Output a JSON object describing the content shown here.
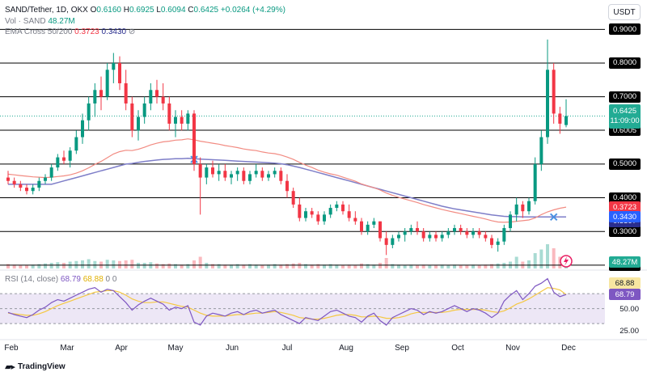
{
  "header": {
    "symbol": "SAND/Tether, 1D, OKX",
    "ohlc": [
      {
        "k": "O",
        "v": "0.6160"
      },
      {
        "k": "H",
        "v": "0.6925"
      },
      {
        "k": "L",
        "v": "0.6094"
      },
      {
        "k": "C",
        "v": "0.6425"
      }
    ],
    "change": "+0.0264 (+4.29%)",
    "vol_label": "Vol · SAND",
    "vol_value": "48.27M",
    "ema_label": "EMA Cross 50/200",
    "ema50_value": "0.3723",
    "ema200_value": "0.3430",
    "settings_glyph": "⊘",
    "currency": "USDT"
  },
  "colors": {
    "up": "#089981",
    "down": "#f23645",
    "ema50": "#f28b82",
    "ema200": "#7e7ec8",
    "level_line": "#000000",
    "rsi_line": "#7e57c2",
    "rsi_ma": "#f5c842",
    "rsi_band": "#ede7f6"
  },
  "price_axis": {
    "levels": [
      "0.9000",
      "0.8000",
      "0.7000",
      "0.6005",
      "0.5000",
      "0.4000",
      "0.3000",
      "0.2000"
    ],
    "current_price": "0.6425",
    "countdown": "11:09:00",
    "ema50_tag": "0.3723",
    "ema200_tag": "0.3430",
    "extra_tag": "0.3397",
    "volume_tag": "48.27M"
  },
  "rsi": {
    "label": "RSI (14, close)",
    "value": "68.79",
    "ma_value": "68.88",
    "extra": "0 0",
    "axis": [
      "50.00",
      "25.00"
    ],
    "tag_a": "68.88",
    "tag_b": "68.79"
  },
  "x_axis": [
    "Feb",
    "Mar",
    "Apr",
    "May",
    "Jun",
    "Jul",
    "Aug",
    "Sep",
    "Oct",
    "Nov",
    "Dec"
  ],
  "branding": {
    "logo_text": "TradingView",
    "logo_icon": "tradingview-logo-icon"
  },
  "chart_data": {
    "type": "candlestick",
    "title": "SAND/Tether, 1D, OKX",
    "ylim": [
      0.19,
      0.92
    ],
    "candles": [
      [
        0.46,
        0.48,
        0.44,
        0.45
      ],
      [
        0.45,
        0.46,
        0.43,
        0.44
      ],
      [
        0.44,
        0.45,
        0.42,
        0.43
      ],
      [
        0.43,
        0.44,
        0.41,
        0.42
      ],
      [
        0.42,
        0.44,
        0.41,
        0.43
      ],
      [
        0.43,
        0.46,
        0.42,
        0.45
      ],
      [
        0.45,
        0.47,
        0.44,
        0.46
      ],
      [
        0.46,
        0.5,
        0.45,
        0.49
      ],
      [
        0.49,
        0.53,
        0.48,
        0.52
      ],
      [
        0.52,
        0.54,
        0.5,
        0.51
      ],
      [
        0.51,
        0.55,
        0.49,
        0.54
      ],
      [
        0.54,
        0.6,
        0.53,
        0.58
      ],
      [
        0.58,
        0.65,
        0.56,
        0.63
      ],
      [
        0.63,
        0.7,
        0.6,
        0.68
      ],
      [
        0.68,
        0.74,
        0.64,
        0.72
      ],
      [
        0.72,
        0.76,
        0.66,
        0.7
      ],
      [
        0.7,
        0.8,
        0.69,
        0.78
      ],
      [
        0.78,
        0.83,
        0.74,
        0.8
      ],
      [
        0.8,
        0.82,
        0.72,
        0.74
      ],
      [
        0.74,
        0.78,
        0.66,
        0.68
      ],
      [
        0.68,
        0.7,
        0.58,
        0.6
      ],
      [
        0.6,
        0.66,
        0.57,
        0.64
      ],
      [
        0.64,
        0.7,
        0.62,
        0.68
      ],
      [
        0.68,
        0.74,
        0.66,
        0.72
      ],
      [
        0.72,
        0.75,
        0.68,
        0.7
      ],
      [
        0.7,
        0.74,
        0.66,
        0.68
      ],
      [
        0.68,
        0.7,
        0.6,
        0.62
      ],
      [
        0.62,
        0.66,
        0.58,
        0.64
      ],
      [
        0.64,
        0.66,
        0.6,
        0.62
      ],
      [
        0.62,
        0.66,
        0.6,
        0.65
      ],
      [
        0.65,
        0.66,
        0.48,
        0.5
      ],
      [
        0.5,
        0.52,
        0.35,
        0.46
      ],
      [
        0.46,
        0.5,
        0.44,
        0.49
      ],
      [
        0.49,
        0.51,
        0.46,
        0.47
      ],
      [
        0.47,
        0.5,
        0.45,
        0.48
      ],
      [
        0.48,
        0.5,
        0.45,
        0.46
      ],
      [
        0.46,
        0.48,
        0.44,
        0.47
      ],
      [
        0.47,
        0.49,
        0.45,
        0.48
      ],
      [
        0.48,
        0.49,
        0.44,
        0.45
      ],
      [
        0.45,
        0.48,
        0.44,
        0.47
      ],
      [
        0.47,
        0.5,
        0.46,
        0.48
      ],
      [
        0.48,
        0.49,
        0.45,
        0.46
      ],
      [
        0.46,
        0.48,
        0.45,
        0.47
      ],
      [
        0.47,
        0.49,
        0.46,
        0.48
      ],
      [
        0.48,
        0.49,
        0.44,
        0.45
      ],
      [
        0.45,
        0.47,
        0.4,
        0.42
      ],
      [
        0.42,
        0.43,
        0.37,
        0.38
      ],
      [
        0.38,
        0.4,
        0.33,
        0.34
      ],
      [
        0.34,
        0.37,
        0.33,
        0.36
      ],
      [
        0.36,
        0.37,
        0.34,
        0.35
      ],
      [
        0.35,
        0.36,
        0.32,
        0.33
      ],
      [
        0.33,
        0.36,
        0.32,
        0.35
      ],
      [
        0.35,
        0.38,
        0.34,
        0.37
      ],
      [
        0.37,
        0.39,
        0.36,
        0.38
      ],
      [
        0.38,
        0.39,
        0.35,
        0.36
      ],
      [
        0.36,
        0.38,
        0.33,
        0.34
      ],
      [
        0.34,
        0.36,
        0.32,
        0.33
      ],
      [
        0.33,
        0.34,
        0.29,
        0.3
      ],
      [
        0.3,
        0.33,
        0.29,
        0.32
      ],
      [
        0.32,
        0.34,
        0.31,
        0.33
      ],
      [
        0.33,
        0.33,
        0.27,
        0.28
      ],
      [
        0.28,
        0.3,
        0.23,
        0.26
      ],
      [
        0.26,
        0.29,
        0.25,
        0.28
      ],
      [
        0.28,
        0.3,
        0.27,
        0.29
      ],
      [
        0.29,
        0.31,
        0.27,
        0.3
      ],
      [
        0.3,
        0.32,
        0.29,
        0.31
      ],
      [
        0.31,
        0.33,
        0.29,
        0.3
      ],
      [
        0.3,
        0.31,
        0.27,
        0.28
      ],
      [
        0.28,
        0.3,
        0.27,
        0.29
      ],
      [
        0.29,
        0.3,
        0.27,
        0.28
      ],
      [
        0.28,
        0.3,
        0.27,
        0.29
      ],
      [
        0.29,
        0.31,
        0.28,
        0.3
      ],
      [
        0.3,
        0.32,
        0.29,
        0.31
      ],
      [
        0.31,
        0.32,
        0.29,
        0.3
      ],
      [
        0.3,
        0.31,
        0.28,
        0.29
      ],
      [
        0.29,
        0.31,
        0.28,
        0.3
      ],
      [
        0.3,
        0.31,
        0.28,
        0.29
      ],
      [
        0.29,
        0.3,
        0.27,
        0.28
      ],
      [
        0.28,
        0.29,
        0.25,
        0.26
      ],
      [
        0.26,
        0.28,
        0.24,
        0.27
      ],
      [
        0.27,
        0.32,
        0.26,
        0.31
      ],
      [
        0.31,
        0.36,
        0.3,
        0.35
      ],
      [
        0.35,
        0.4,
        0.33,
        0.38
      ],
      [
        0.38,
        0.39,
        0.34,
        0.36
      ],
      [
        0.36,
        0.4,
        0.35,
        0.39
      ],
      [
        0.39,
        0.52,
        0.38,
        0.5
      ],
      [
        0.5,
        0.6,
        0.48,
        0.58
      ],
      [
        0.58,
        0.87,
        0.56,
        0.78
      ],
      [
        0.78,
        0.8,
        0.62,
        0.65
      ],
      [
        0.65,
        0.67,
        0.59,
        0.62
      ],
      [
        0.616,
        0.6925,
        0.6094,
        0.6425
      ]
    ],
    "volume": [
      0.3,
      0.25,
      0.2,
      0.2,
      0.25,
      0.3,
      0.35,
      0.4,
      0.45,
      0.4,
      0.5,
      0.55,
      0.6,
      0.7,
      0.55,
      0.5,
      0.65,
      0.6,
      0.55,
      0.6,
      0.65,
      0.4,
      0.4,
      0.45,
      0.35,
      0.3,
      0.35,
      0.3,
      0.25,
      0.3,
      0.6,
      0.9,
      0.4,
      0.3,
      0.3,
      0.25,
      0.25,
      0.3,
      0.25,
      0.3,
      0.25,
      0.2,
      0.25,
      0.3,
      0.25,
      0.3,
      0.35,
      0.4,
      0.3,
      0.25,
      0.3,
      0.25,
      0.3,
      0.25,
      0.2,
      0.25,
      0.2,
      0.35,
      0.3,
      0.25,
      0.4,
      0.8,
      0.3,
      0.25,
      0.2,
      0.25,
      0.2,
      0.25,
      0.2,
      0.2,
      0.25,
      0.2,
      0.25,
      0.2,
      0.2,
      0.25,
      0.2,
      0.25,
      0.3,
      0.35,
      0.4,
      0.5,
      0.9,
      0.5,
      0.6,
      1.2,
      1.5,
      3.0,
      1.6,
      0.9,
      0.7
    ],
    "rsi": [
      45,
      42,
      40,
      38,
      42,
      48,
      52,
      58,
      62,
      60,
      64,
      68,
      72,
      76,
      78,
      72,
      76,
      74,
      66,
      58,
      48,
      55,
      60,
      64,
      60,
      56,
      48,
      52,
      50,
      54,
      32,
      28,
      40,
      44,
      42,
      40,
      44,
      46,
      42,
      46,
      48,
      44,
      46,
      48,
      42,
      38,
      34,
      30,
      38,
      36,
      34,
      40,
      46,
      48,
      44,
      40,
      38,
      32,
      40,
      44,
      34,
      28,
      38,
      42,
      46,
      50,
      48,
      42,
      46,
      44,
      46,
      50,
      54,
      50,
      46,
      50,
      48,
      44,
      38,
      44,
      60,
      68,
      74,
      62,
      70,
      80,
      84,
      90,
      72,
      66,
      68.79
    ],
    "rsi_ma": [
      44,
      43,
      42,
      41,
      41,
      43,
      46,
      50,
      54,
      57,
      60,
      63,
      66,
      69,
      72,
      73,
      74,
      74,
      72,
      68,
      63,
      60,
      58,
      58,
      59,
      59,
      57,
      55,
      53,
      52,
      48,
      44,
      41,
      40,
      40,
      40,
      41,
      42,
      42,
      43,
      44,
      44,
      45,
      46,
      45,
      43,
      41,
      38,
      37,
      36,
      36,
      37,
      39,
      41,
      42,
      42,
      41,
      39,
      39,
      40,
      39,
      37,
      37,
      38,
      40,
      43,
      45,
      45,
      45,
      45,
      45,
      46,
      48,
      49,
      49,
      49,
      49,
      48,
      46,
      45,
      47,
      51,
      56,
      59,
      63,
      68,
      73,
      78,
      77,
      75,
      68.88
    ],
    "ema50": [
      0.47,
      0.468,
      0.466,
      0.464,
      0.462,
      0.461,
      0.46,
      0.461,
      0.463,
      0.465,
      0.468,
      0.473,
      0.48,
      0.489,
      0.499,
      0.508,
      0.519,
      0.53,
      0.537,
      0.541,
      0.54,
      0.544,
      0.55,
      0.557,
      0.562,
      0.566,
      0.568,
      0.571,
      0.572,
      0.575,
      0.572,
      0.568,
      0.565,
      0.562,
      0.559,
      0.555,
      0.552,
      0.549,
      0.545,
      0.542,
      0.54,
      0.536,
      0.533,
      0.531,
      0.527,
      0.521,
      0.514,
      0.505,
      0.497,
      0.49,
      0.482,
      0.476,
      0.471,
      0.467,
      0.461,
      0.455,
      0.449,
      0.441,
      0.435,
      0.43,
      0.423,
      0.414,
      0.407,
      0.401,
      0.396,
      0.391,
      0.386,
      0.38,
      0.375,
      0.37,
      0.365,
      0.361,
      0.357,
      0.353,
      0.349,
      0.345,
      0.341,
      0.337,
      0.332,
      0.328,
      0.327,
      0.328,
      0.33,
      0.332,
      0.334,
      0.34,
      0.35,
      0.358,
      0.364,
      0.369,
      0.3723
    ],
    "ema200": [
      0.44,
      0.44,
      0.44,
      0.44,
      0.44,
      0.44,
      0.44,
      0.44,
      0.445,
      0.45,
      0.455,
      0.46,
      0.465,
      0.47,
      0.475,
      0.48,
      0.485,
      0.49,
      0.495,
      0.5,
      0.502,
      0.505,
      0.508,
      0.51,
      0.512,
      0.514,
      0.515,
      0.516,
      0.516,
      0.517,
      0.516,
      0.515,
      0.514,
      0.513,
      0.512,
      0.511,
      0.51,
      0.509,
      0.508,
      0.507,
      0.506,
      0.505,
      0.504,
      0.503,
      0.501,
      0.498,
      0.494,
      0.49,
      0.485,
      0.48,
      0.475,
      0.47,
      0.465,
      0.46,
      0.455,
      0.45,
      0.445,
      0.44,
      0.435,
      0.43,
      0.425,
      0.42,
      0.415,
      0.41,
      0.405,
      0.4,
      0.395,
      0.39,
      0.385,
      0.38,
      0.375,
      0.371,
      0.367,
      0.364,
      0.361,
      0.358,
      0.355,
      0.352,
      0.349,
      0.347,
      0.345,
      0.344,
      0.344,
      0.343,
      0.343,
      0.343,
      0.343,
      0.343,
      0.343,
      0.343,
      0.343
    ]
  }
}
